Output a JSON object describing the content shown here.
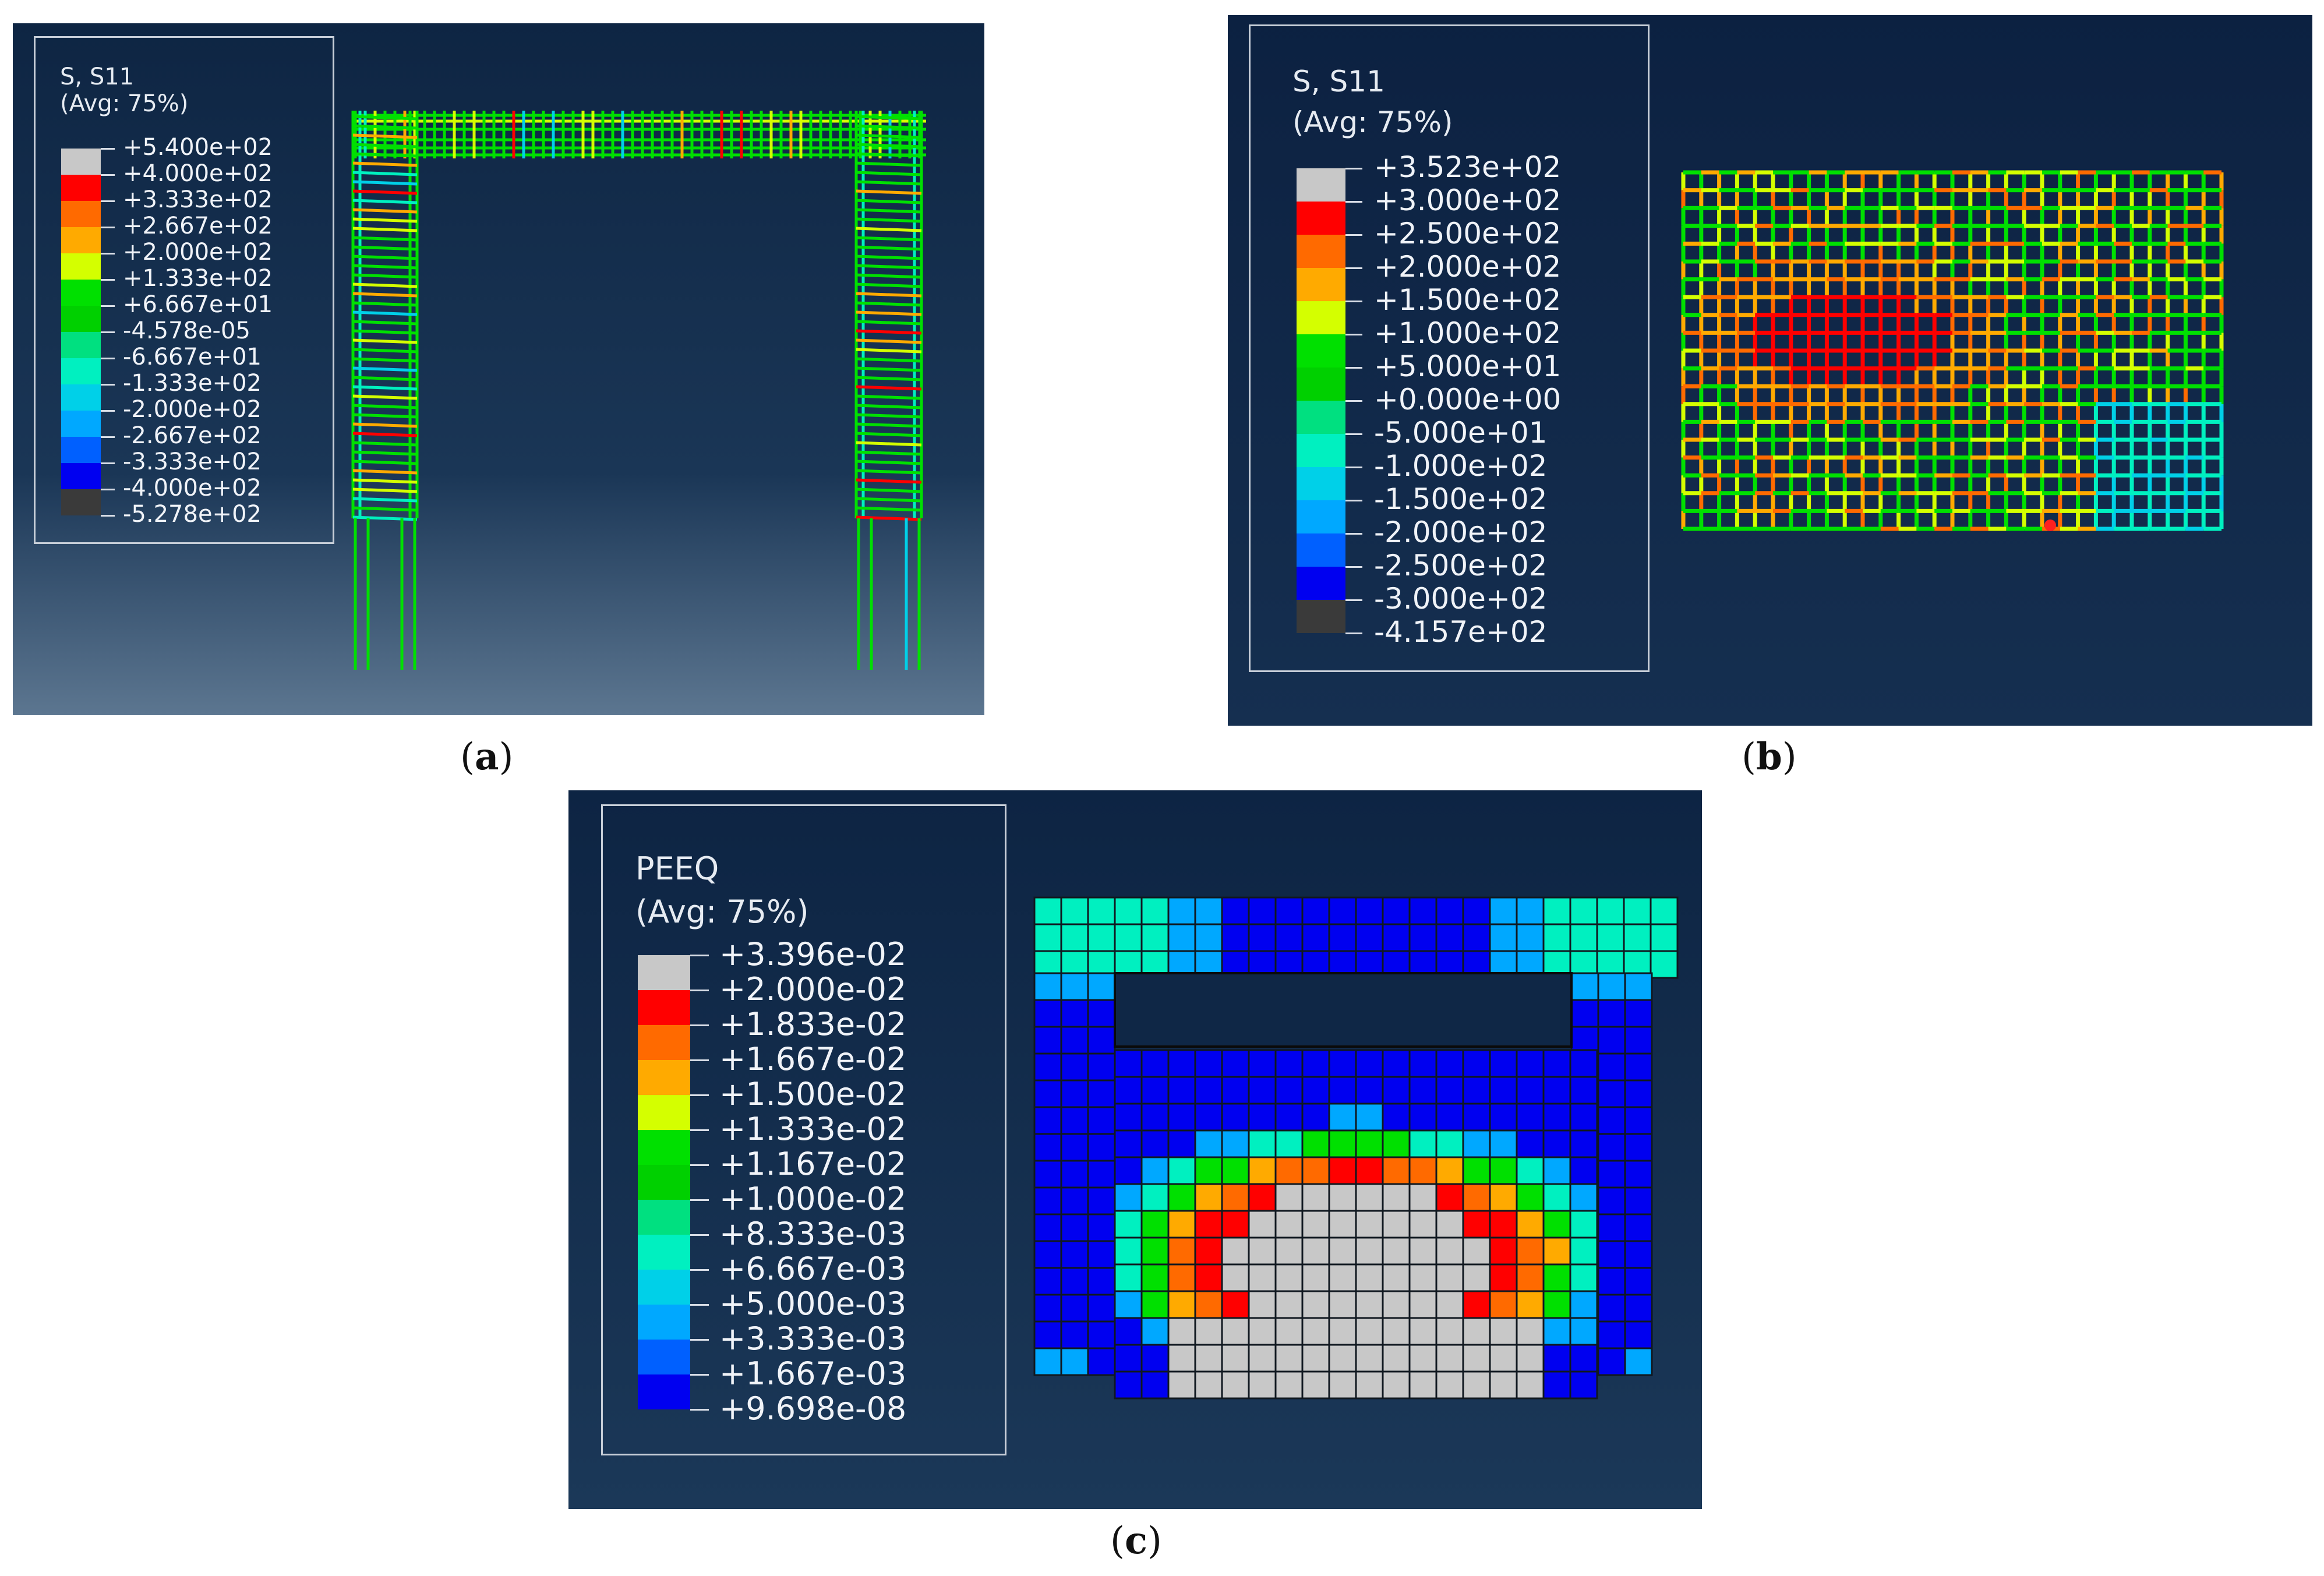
{
  "colors": {
    "stress": [
      "#c8c8c8",
      "#ff0000",
      "#ff6a00",
      "#ffaa00",
      "#d4ff00",
      "#00e000",
      "#00d000",
      "#00e080",
      "#00f0c0",
      "#00d0e8",
      "#00a8ff",
      "#0060ff",
      "#0000f0",
      "#3a3a3a"
    ],
    "peeq": [
      "#c8c8c8",
      "#ff0000",
      "#ff6a00",
      "#ffaa00",
      "#d4ff00",
      "#00e000",
      "#00d000",
      "#00e080",
      "#00f0c0",
      "#00d0e8",
      "#00a8ff",
      "#0060ff",
      "#0000f0"
    ],
    "background": "#0e2543",
    "legend_border": "#c7ced8"
  },
  "panels": [
    {
      "id": "a",
      "caption": "a",
      "legend": {
        "variable": "S, S11",
        "averaging": "(Avg: 75%)",
        "values": [
          "+5.400e+02",
          "+4.000e+02",
          "+3.333e+02",
          "+2.667e+02",
          "+2.000e+02",
          "+1.333e+02",
          "+6.667e+01",
          "-4.578e-05",
          "-6.667e+01",
          "-1.333e+02",
          "-2.000e+02",
          "-2.667e+02",
          "-3.333e+02",
          "-4.000e+02",
          "-5.278e+02"
        ]
      },
      "model": "reinforcement cage (frame)"
    },
    {
      "id": "b",
      "caption": "b",
      "legend": {
        "variable": "S, S11",
        "averaging": "(Avg: 75%)",
        "values": [
          "+3.523e+02",
          "+3.000e+02",
          "+2.500e+02",
          "+2.000e+02",
          "+1.500e+02",
          "+1.000e+02",
          "+5.000e+01",
          "+0.000e+00",
          "-5.000e+01",
          "-1.000e+02",
          "-1.500e+02",
          "-2.000e+02",
          "-2.500e+02",
          "-3.000e+02",
          "-4.157e+02"
        ]
      },
      "model": "reinforcement mesh (wall)"
    },
    {
      "id": "c",
      "caption": "c",
      "legend": {
        "variable": "PEEQ",
        "averaging": "(Avg: 75%)",
        "values": [
          "+3.396e-02",
          "+2.000e-02",
          "+1.833e-02",
          "+1.667e-02",
          "+1.500e-02",
          "+1.333e-02",
          "+1.167e-02",
          "+1.000e-02",
          "+8.333e-03",
          "+6.667e-03",
          "+5.000e-03",
          "+3.333e-03",
          "+1.667e-03",
          "+9.698e-08"
        ]
      },
      "model": "concrete infill wall"
    }
  ]
}
